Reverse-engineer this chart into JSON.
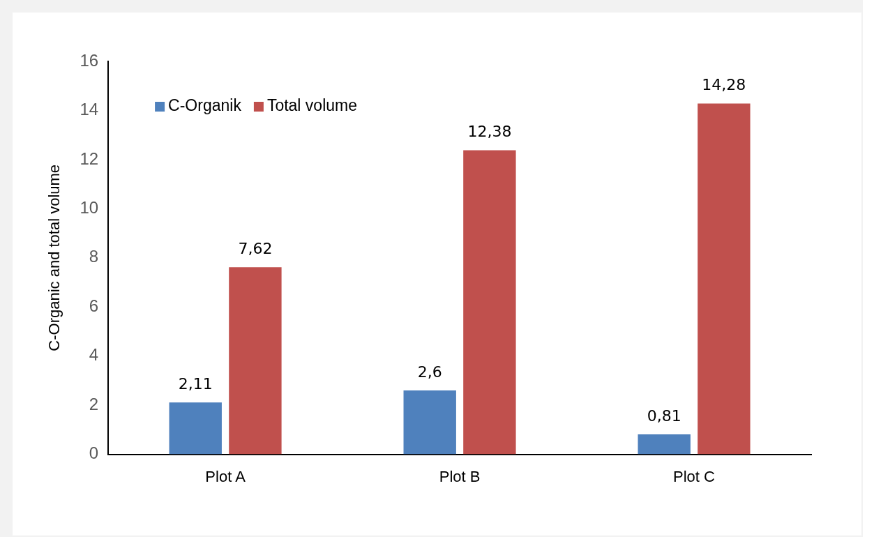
{
  "chart_data": {
    "type": "bar",
    "ylabel": "C-Organic and total volume",
    "categories": [
      "Plot A",
      "Plot B",
      "Plot C"
    ],
    "series": [
      {
        "name": "C-Organik",
        "color": "#4f81bd",
        "values": [
          2.11,
          2.6,
          0.81
        ],
        "value_labels": [
          "2,11",
          "2,6",
          "0,81"
        ]
      },
      {
        "name": "Total volume",
        "color": "#c0504d",
        "values": [
          7.62,
          12.38,
          14.28
        ],
        "value_labels": [
          "7,62",
          "12,38",
          "14,28"
        ]
      }
    ],
    "ylim": [
      0,
      16
    ],
    "yticks": [
      0,
      2,
      4,
      6,
      8,
      10,
      12,
      14,
      16
    ],
    "grid": false,
    "legend": "top left"
  }
}
